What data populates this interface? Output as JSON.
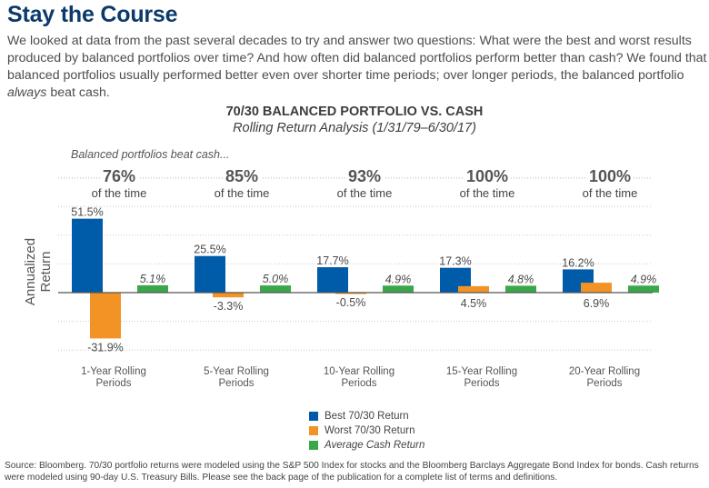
{
  "header": {
    "title": "Stay the Course",
    "intro_before": "We looked at data from the past several decades to try and answer two questions: What were the best and worst results produced by balanced portfolios over time? And how often did balanced portfolios perform better than cash? We found that balanced portfolios usually performed better even over shorter time periods; over longer periods, the balanced portfolio ",
    "intro_emphasis": "always",
    "intro_after": " beat cash."
  },
  "chart_data": {
    "type": "bar",
    "title": "70/30 BALANCED PORTFOLIO VS. CASH",
    "subtitle": "Rolling Return Analysis (1/31/79–6/30/17)",
    "annotation": "Balanced portfolios beat cash...",
    "ylabel": "Annualized Return",
    "xlabel": "",
    "ylim": [
      -40,
      80
    ],
    "grid": true,
    "gridline_step": 20,
    "legend_position": "bottom-center",
    "categories": [
      "1-Year Rolling\nPeriods",
      "5-Year Rolling\nPeriods",
      "10-Year Rolling\nPeriods",
      "15-Year Rolling\nPeriods",
      "20-Year Rolling\nPeriods"
    ],
    "category_lines": [
      [
        "1-Year Rolling",
        "Periods"
      ],
      [
        "5-Year Rolling",
        "Periods"
      ],
      [
        "10-Year Rolling",
        "Periods"
      ],
      [
        "15-Year Rolling",
        "Periods"
      ],
      [
        "20-Year Rolling",
        "Periods"
      ]
    ],
    "beat_cash": {
      "values": [
        "76%",
        "85%",
        "93%",
        "100%",
        "100%"
      ],
      "suffix": "of the time"
    },
    "series": [
      {
        "name": "Best 70/30 Return",
        "color": "#005ca9",
        "values": [
          51.5,
          25.5,
          17.7,
          17.3,
          16.2
        ],
        "labels": [
          "51.5%",
          "25.5%",
          "17.7%",
          "17.3%",
          "16.2%"
        ],
        "italic_labels": false
      },
      {
        "name": "Worst 70/30 Return",
        "color": "#f39325",
        "values": [
          -31.9,
          -3.3,
          -0.5,
          4.5,
          6.9
        ],
        "labels": [
          "-31.9%",
          "-3.3%",
          "-0.5%",
          "4.5%",
          "6.9%"
        ],
        "italic_labels": false
      },
      {
        "name": "Average Cash Return",
        "color": "#3aa84a",
        "values": [
          5.1,
          5.0,
          4.9,
          4.8,
          4.9
        ],
        "labels": [
          "5.1%",
          "5.0%",
          "4.9%",
          "4.8%",
          "4.9%"
        ],
        "italic_labels": true
      }
    ]
  },
  "legend": {
    "items": [
      {
        "label": "Best 70/30 Return",
        "color": "#005ca9"
      },
      {
        "label": "Worst 70/30 Return",
        "color": "#f39325"
      },
      {
        "label": "Average Cash Return",
        "color": "#3aa84a"
      }
    ]
  },
  "footer": {
    "source": "Source: Bloomberg. 70/30 portfolio returns were modeled using the S&P 500 Index for stocks and the Bloomberg Barclays Aggregate Bond Index for bonds. Cash returns were modeled using 90-day U.S. Treasury Bills. Please see the back page of the publication for a complete list of terms and definitions."
  }
}
